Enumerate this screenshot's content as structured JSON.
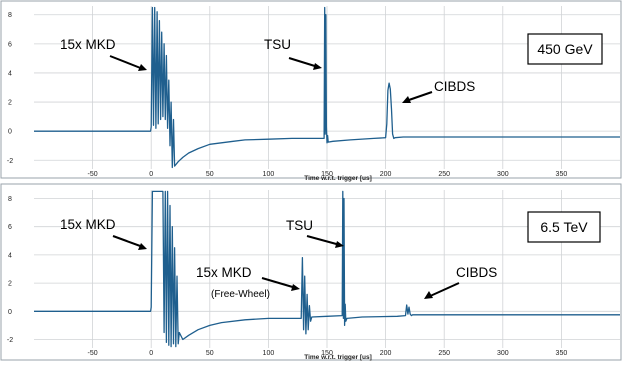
{
  "colors": {
    "signal": "#1f5f8e",
    "grid": "#d0d3d6",
    "frame": "#9aa3ab"
  },
  "chart_data": [
    {
      "type": "line",
      "title": "",
      "energy_label": "450 GeV",
      "xlabel": "Time w.r.t. trigger [us]",
      "ylabel": "",
      "xlim": [
        -100,
        400
      ],
      "ylim": [
        -2.6,
        8.6
      ],
      "xticks": [
        -50,
        0,
        50,
        100,
        150,
        200,
        250,
        300,
        350
      ],
      "yticks": [
        -2,
        0,
        2,
        4,
        6,
        8
      ],
      "grid": true,
      "annotations": [
        {
          "text": "15x MKD",
          "target_x": 0,
          "target_y": 5
        },
        {
          "text": "TSU",
          "target_x": 149,
          "target_y": 5
        },
        {
          "text": "CIBDS",
          "target_x": 204,
          "target_y": 2
        }
      ],
      "series": [
        {
          "x": [
            -100,
            -0.5,
            0,
            1,
            2,
            3,
            4,
            5,
            6,
            7,
            8,
            9,
            10,
            11,
            12,
            13,
            14,
            15,
            16,
            17,
            18,
            19,
            20,
            23,
            27,
            32,
            40,
            50,
            60,
            70,
            80,
            100,
            120,
            140,
            147.5,
            148,
            148.5,
            149,
            149.5,
            150,
            150.5,
            151,
            155,
            170,
            190,
            200,
            201,
            202,
            203,
            204,
            205,
            206,
            207,
            208,
            215,
            250,
            300,
            350,
            400
          ],
          "y": [
            0,
            0,
            0.3,
            8.5,
            0.4,
            8.5,
            0.2,
            8.2,
            0.5,
            7.6,
            0.8,
            6.8,
            1.0,
            6.0,
            0.8,
            5.2,
            0.2,
            3.5,
            -1.0,
            2.0,
            -2.5,
            0.8,
            -2.4,
            -2.1,
            -1.8,
            -1.5,
            -1.2,
            -0.9,
            -0.8,
            -0.7,
            -0.6,
            -0.55,
            -0.5,
            -0.5,
            -0.5,
            8.5,
            -0.2,
            8.0,
            0.3,
            -0.8,
            -0.3,
            -0.75,
            -0.7,
            -0.6,
            -0.5,
            -0.45,
            0.5,
            2.8,
            3.3,
            2.9,
            1.5,
            -0.2,
            -0.5,
            -0.45,
            -0.4,
            -0.4,
            -0.4,
            -0.4,
            -0.4
          ]
        }
      ]
    },
    {
      "type": "line",
      "title": "",
      "energy_label": "6.5 TeV",
      "xlabel": "Time w.r.t. trigger [us]",
      "ylabel": "",
      "xlim": [
        -100,
        400
      ],
      "ylim": [
        -2.6,
        8.6
      ],
      "xticks": [
        -50,
        0,
        50,
        100,
        150,
        200,
        250,
        300,
        350
      ],
      "yticks": [
        -2,
        0,
        2,
        4,
        6,
        8
      ],
      "grid": true,
      "annotations": [
        {
          "text": "15x MKD",
          "target_x": 0,
          "target_y": 5
        },
        {
          "text": "15x MKD",
          "subtext": "(Free-Wheel)",
          "target_x": 132,
          "target_y": 1
        },
        {
          "text": "TSU",
          "target_x": 165,
          "target_y": 4
        },
        {
          "text": "CIBDS",
          "target_x": 220,
          "target_y": 0.4
        }
      ],
      "series": [
        {
          "x": [
            -100,
            -0.5,
            0,
            1,
            2,
            5,
            9,
            10,
            11,
            12,
            13,
            14,
            15,
            16,
            17,
            18,
            19,
            20,
            21,
            22,
            23,
            24,
            27,
            32,
            40,
            50,
            60,
            80,
            100,
            120,
            128,
            129,
            130,
            131,
            132,
            133,
            134,
            135,
            136,
            137,
            150,
            163,
            163.5,
            164,
            164.5,
            165,
            165.5,
            166,
            167,
            180,
            210,
            217,
            218,
            219,
            220,
            221,
            222,
            223,
            230,
            270,
            300,
            350,
            400
          ],
          "y": [
            0,
            0,
            0.3,
            8.5,
            8.5,
            8.5,
            8.5,
            8.5,
            -1.5,
            8.5,
            -2.2,
            8.5,
            -2.4,
            7.5,
            -2.5,
            6.0,
            -2.3,
            4.5,
            -2.5,
            2.5,
            -2.3,
            -1.5,
            -2.0,
            -1.7,
            -1.3,
            -1.0,
            -0.8,
            -0.6,
            -0.5,
            -0.5,
            -0.5,
            3.8,
            -1.3,
            2.5,
            -1.6,
            1.2,
            -1.3,
            0.4,
            -0.7,
            -0.4,
            -0.35,
            -0.3,
            8.5,
            -0.5,
            8.0,
            -1.0,
            0.5,
            -0.7,
            -0.5,
            -0.4,
            -0.35,
            -0.3,
            0.45,
            -0.2,
            0.3,
            -0.2,
            -0.3,
            -0.25,
            -0.25,
            -0.25,
            -0.25,
            -0.25,
            -0.25
          ]
        }
      ]
    }
  ]
}
